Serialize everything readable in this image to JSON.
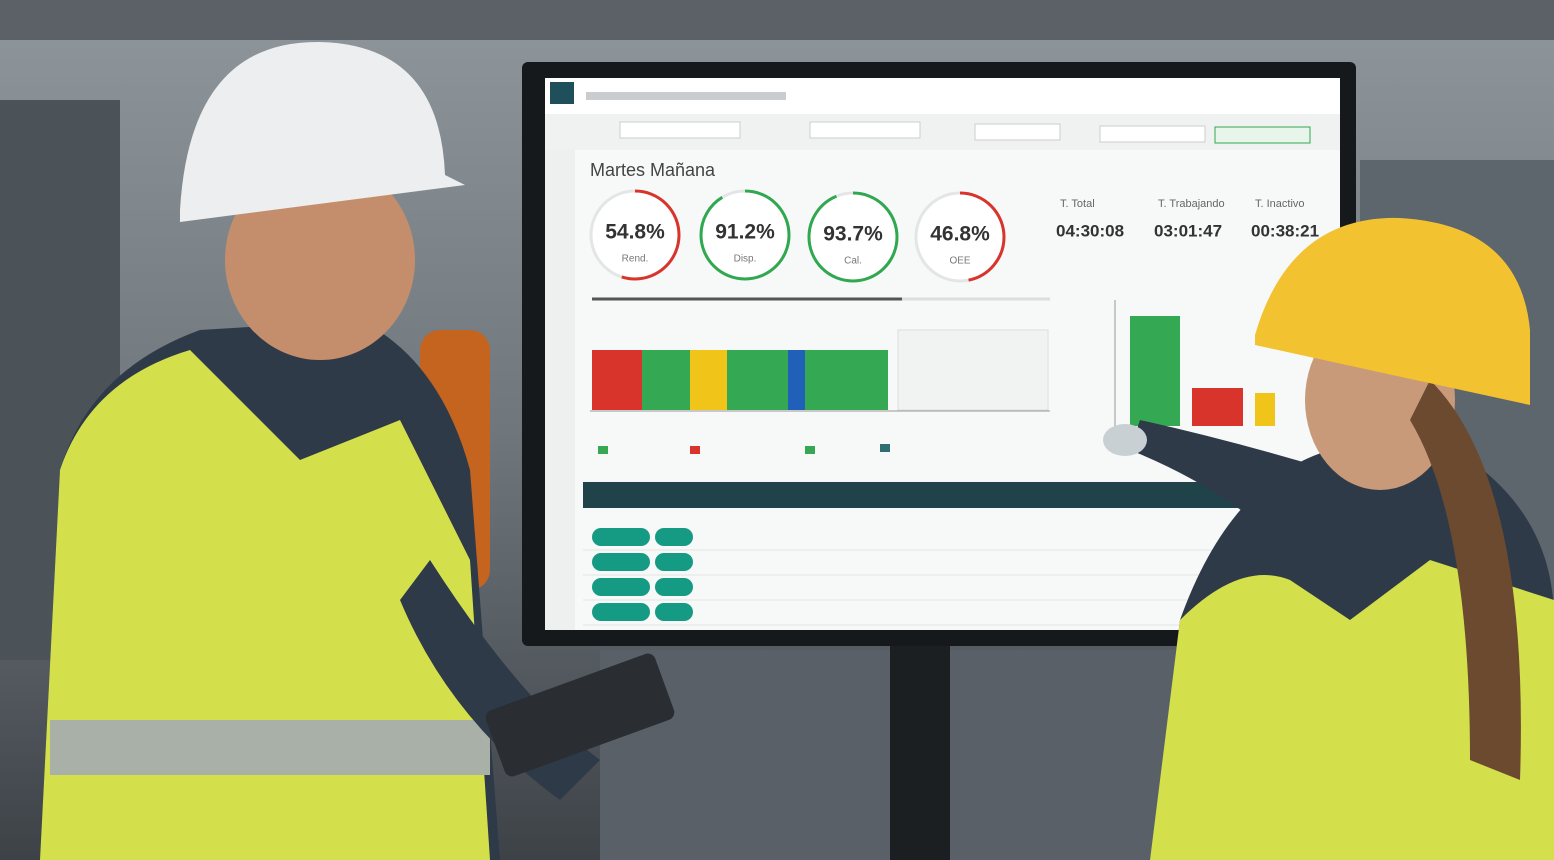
{
  "dashboard": {
    "title": "Martes Mañana",
    "kpis": [
      {
        "value": 54.8,
        "value_label": "54.8%",
        "label": "Rend.",
        "color": "#d9342b"
      },
      {
        "value": 91.2,
        "value_label": "91.2%",
        "label": "Disp.",
        "color": "#2fa84f"
      },
      {
        "value": 93.7,
        "value_label": "93.7%",
        "label": "Cal.",
        "color": "#2fa84f"
      },
      {
        "value": 46.8,
        "value_label": "46.8%",
        "label": "OEE",
        "color": "#d9342b"
      }
    ],
    "times": [
      {
        "label": "T. Total",
        "value": "04:30:08"
      },
      {
        "label": "T. Trabajando",
        "value": "03:01:47"
      },
      {
        "label": "T. Inactivo",
        "value": "00:38:21"
      }
    ]
  }
}
